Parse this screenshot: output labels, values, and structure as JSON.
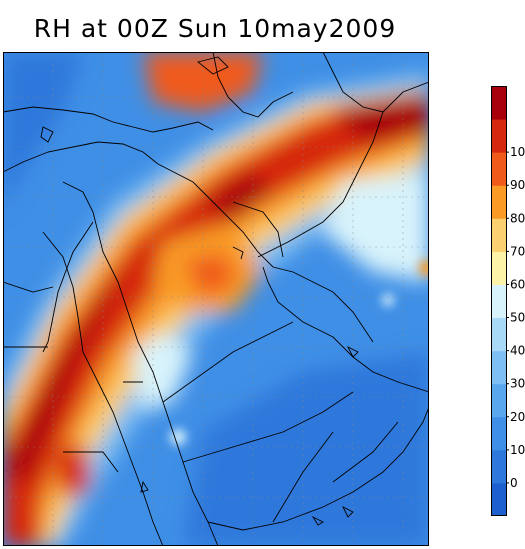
{
  "title": "RH at 00Z Sun 10may2009",
  "colorbar": {
    "levels": [
      {
        "label": "",
        "color": "#1e5fd0"
      },
      {
        "label": "0",
        "color": "#2e78dc"
      },
      {
        "label": "10",
        "color": "#3f8fe6"
      },
      {
        "label": "20",
        "color": "#5aa7ee"
      },
      {
        "label": "30",
        "color": "#7fc0f4"
      },
      {
        "label": "40",
        "color": "#a8daf8"
      },
      {
        "label": "50",
        "color": "#d8f3fb"
      },
      {
        "label": "60",
        "color": "#fdf3a8"
      },
      {
        "label": "70",
        "color": "#fbd070"
      },
      {
        "label": "80",
        "color": "#f99b25"
      },
      {
        "label": "90",
        "color": "#f05a1a"
      },
      {
        "label": "10",
        "color": "#d6270f"
      },
      {
        "label": "",
        "color": "#a8000b"
      }
    ]
  },
  "colors": {
    "border": "#000000",
    "background": "#ffffff"
  }
}
